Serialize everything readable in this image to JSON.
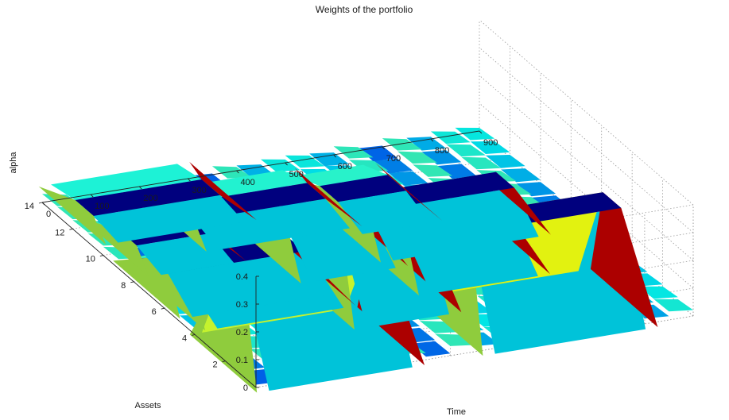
{
  "chart_data": {
    "type": "surface",
    "title": "Weights of the portfolio",
    "xlabel": "Time",
    "ylabel": "Assets",
    "zlabel": "alpha",
    "xlim": [
      0,
      900
    ],
    "ylim": [
      0,
      14
    ],
    "zlim": [
      0,
      0.4
    ],
    "x_ticks": [
      0,
      100,
      200,
      300,
      400,
      500,
      600,
      700,
      800,
      900
    ],
    "y_ticks": [
      2,
      4,
      6,
      8,
      10,
      12,
      14
    ],
    "z_ticks": [
      0,
      0.1,
      0.2,
      0.3,
      0.4
    ],
    "colormap": "jet",
    "grid": true,
    "plateaus": [
      {
        "asset": 1.5,
        "t0": 5,
        "t1": 300,
        "alpha": 0.33
      },
      {
        "asset": 4.5,
        "t0": 300,
        "t1": 470,
        "alpha": 0.27
      },
      {
        "asset": 1.5,
        "t0": 470,
        "t1": 780,
        "alpha": 0.38
      },
      {
        "asset": 6.0,
        "t0": 40,
        "t1": 300,
        "alpha": 0.08
      },
      {
        "asset": 7.0,
        "t0": 20,
        "t1": 300,
        "alpha": 0.1
      },
      {
        "asset": 8.0,
        "t0": 300,
        "t1": 470,
        "alpha": 0.12
      },
      {
        "asset": 10.0,
        "t0": 50,
        "t1": 200,
        "alpha": 0.05
      },
      {
        "asset": 11.0,
        "t0": 200,
        "t1": 470,
        "alpha": 0.05
      },
      {
        "asset": 12.5,
        "t0": 40,
        "t1": 300,
        "alpha": 0.04
      },
      {
        "asset": 6.0,
        "t0": 480,
        "t1": 700,
        "alpha": 0.14
      },
      {
        "asset": 8.5,
        "t0": 480,
        "t1": 780,
        "alpha": 0.12
      },
      {
        "asset": 10.5,
        "t0": 480,
        "t1": 620,
        "alpha": 0.06
      }
    ]
  }
}
